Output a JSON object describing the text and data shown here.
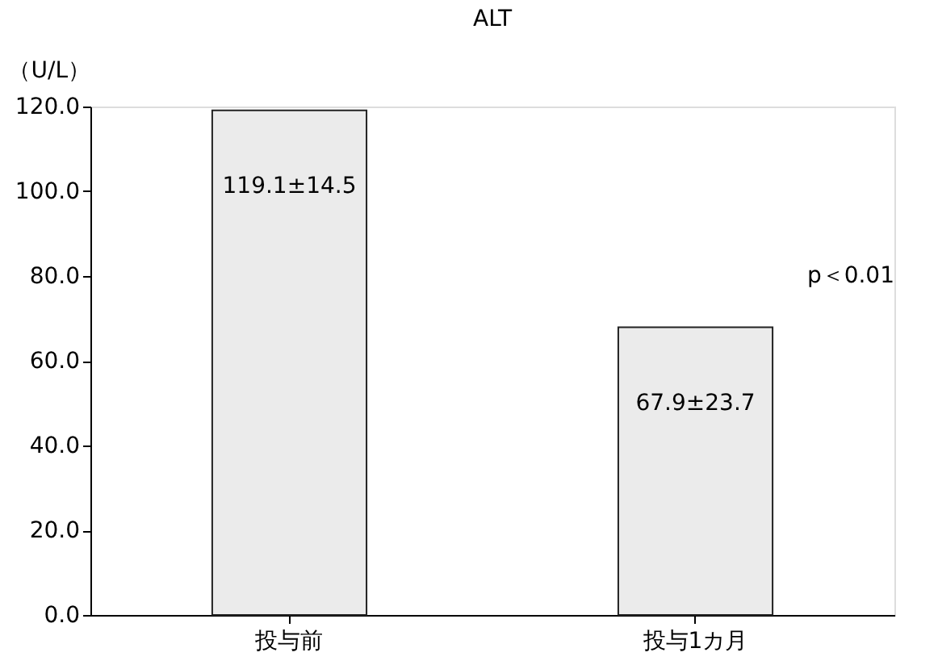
{
  "chart_data": {
    "type": "bar",
    "title": "ALT",
    "ylabel": "（U/L）",
    "categories": [
      "投与前",
      "投与1カ月"
    ],
    "values": [
      119.1,
      67.9
    ],
    "value_labels": [
      "119.1±14.5",
      "67.9±23.7"
    ],
    "color": "#ebebeb",
    "ylim": [
      0,
      120
    ],
    "yticks": [
      {
        "value": 0,
        "label": "0.0"
      },
      {
        "value": 20,
        "label": "20.0"
      },
      {
        "value": 40,
        "label": "40.0"
      },
      {
        "value": 60,
        "label": "60.0"
      },
      {
        "value": 80,
        "label": "80.0"
      },
      {
        "value": 100,
        "label": "100.0"
      },
      {
        "value": 120,
        "label": "120.0"
      }
    ],
    "annotations": [
      "p＜0.01"
    ],
    "grid": false
  }
}
